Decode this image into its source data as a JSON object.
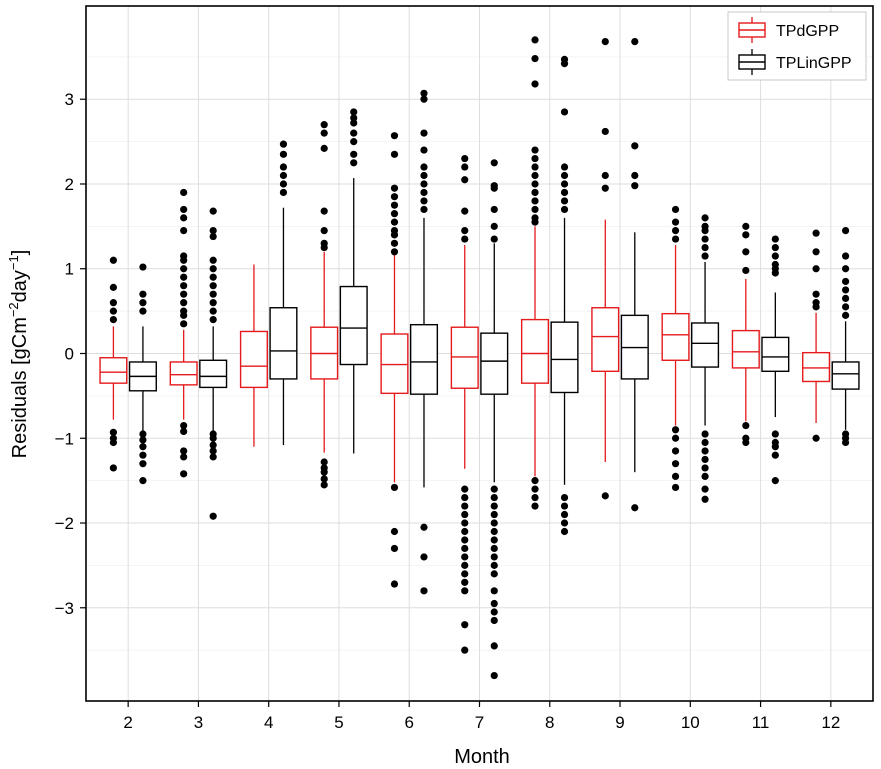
{
  "chart_data": {
    "type": "boxplot",
    "xlabel": "Month",
    "ylabel_prefix": "Residuals [gCm",
    "ylabel_sup1": "−2",
    "ylabel_mid": "day",
    "ylabel_sup2": "−1",
    "ylabel_suffix": "]",
    "ylim": [
      -4.1,
      4.1
    ],
    "yticks": [
      -3,
      -2,
      -1,
      0,
      1,
      2,
      3
    ],
    "ytick_labels": [
      "−3",
      "−2",
      "−1",
      "0",
      "1",
      "2",
      "3"
    ],
    "categories": [
      "2",
      "3",
      "4",
      "5",
      "6",
      "7",
      "8",
      "9",
      "10",
      "11",
      "12"
    ],
    "grid": true,
    "legend_position": "top-right",
    "series": [
      {
        "name": "TPdGPP",
        "color": "#e41a1c",
        "boxes": [
          {
            "q1": -0.35,
            "median": -0.22,
            "q3": -0.05,
            "lower": -0.78,
            "upper": 0.32,
            "outliers": [
              1.1,
              0.78,
              0.6,
              0.5,
              0.4,
              -0.93,
              -1.0,
              -1.05,
              -1.35
            ]
          },
          {
            "q1": -0.37,
            "median": -0.25,
            "q3": -0.1,
            "lower": -0.78,
            "upper": 0.28,
            "outliers": [
              1.9,
              1.7,
              1.6,
              1.45,
              1.15,
              1.1,
              1.0,
              0.9,
              0.8,
              0.7,
              0.6,
              0.5,
              0.45,
              0.35,
              -0.85,
              -0.92,
              -1.15,
              -1.22,
              -1.42
            ]
          },
          {
            "q1": -0.4,
            "median": -0.15,
            "q3": 0.26,
            "lower": -1.1,
            "upper": 1.05,
            "outliers": []
          },
          {
            "q1": -0.3,
            "median": 0.0,
            "q3": 0.31,
            "lower": -1.17,
            "upper": 1.2,
            "outliers": [
              2.7,
              2.6,
              2.42,
              1.68,
              1.45,
              1.3,
              1.25,
              -1.28,
              -1.35,
              -1.4,
              -1.48,
              -1.55
            ]
          },
          {
            "q1": -0.47,
            "median": -0.13,
            "q3": 0.23,
            "lower": -1.52,
            "upper": 1.17,
            "outliers": [
              2.57,
              2.35,
              1.95,
              1.85,
              1.75,
              1.65,
              1.55,
              1.45,
              1.4,
              1.3,
              1.2,
              -1.58,
              -2.1,
              -2.3,
              -2.72
            ]
          },
          {
            "q1": -0.41,
            "median": -0.04,
            "q3": 0.31,
            "lower": -1.36,
            "upper": 1.28,
            "outliers": [
              2.3,
              2.2,
              2.05,
              1.68,
              1.45,
              1.35,
              -1.6,
              -1.7,
              -1.8,
              -1.9,
              -2.0,
              -2.1,
              -2.2,
              -2.3,
              -2.4,
              -2.5,
              -2.6,
              -2.7,
              -2.8,
              -3.2,
              -3.5
            ]
          },
          {
            "q1": -0.35,
            "median": 0.0,
            "q3": 0.4,
            "lower": -1.45,
            "upper": 1.5,
            "outliers": [
              3.7,
              3.48,
              3.18,
              2.4,
              2.3,
              2.2,
              2.1,
              2.0,
              1.9,
              1.8,
              1.7,
              1.6,
              1.55,
              -1.5,
              -1.6,
              -1.7,
              -1.8
            ]
          },
          {
            "q1": -0.21,
            "median": 0.2,
            "q3": 0.54,
            "lower": -1.28,
            "upper": 1.58,
            "outliers": [
              3.68,
              2.62,
              2.1,
              1.95,
              -1.68
            ]
          },
          {
            "q1": -0.08,
            "median": 0.22,
            "q3": 0.47,
            "lower": -0.85,
            "upper": 1.28,
            "outliers": [
              1.7,
              1.55,
              1.45,
              1.35,
              -0.9,
              -1.0,
              -1.15,
              -1.3,
              -1.45,
              -1.58
            ]
          },
          {
            "q1": -0.17,
            "median": 0.02,
            "q3": 0.27,
            "lower": -0.8,
            "upper": 0.88,
            "outliers": [
              1.5,
              1.4,
              1.2,
              0.98,
              -0.85,
              -1.0,
              -1.05
            ]
          },
          {
            "q1": -0.33,
            "median": -0.17,
            "q3": 0.01,
            "lower": -0.82,
            "upper": 0.48,
            "outliers": [
              1.42,
              1.2,
              1.0,
              0.7,
              0.6,
              0.55,
              -1.0
            ]
          }
        ]
      },
      {
        "name": "TPLinGPP",
        "color": "#000000",
        "boxes": [
          {
            "q1": -0.44,
            "median": -0.27,
            "q3": -0.1,
            "lower": -0.93,
            "upper": 0.32,
            "outliers": [
              1.02,
              0.7,
              0.6,
              0.5,
              -0.95,
              -1.02,
              -1.1,
              -1.2,
              -1.3,
              -1.5
            ]
          },
          {
            "q1": -0.4,
            "median": -0.27,
            "q3": -0.08,
            "lower": -0.92,
            "upper": 0.32,
            "outliers": [
              1.68,
              1.45,
              1.38,
              1.1,
              1.0,
              0.9,
              0.8,
              0.7,
              0.6,
              0.5,
              0.4,
              -0.95,
              -1.0,
              -1.08,
              -1.15,
              -1.22,
              -1.92
            ]
          },
          {
            "q1": -0.3,
            "median": 0.03,
            "q3": 0.54,
            "lower": -1.08,
            "upper": 1.72,
            "outliers": [
              2.47,
              2.35,
              2.2,
              2.1,
              2.0,
              1.9
            ]
          },
          {
            "q1": -0.13,
            "median": 0.3,
            "q3": 0.79,
            "lower": -1.18,
            "upper": 2.07,
            "outliers": [
              2.85,
              2.78,
              2.72,
              2.6,
              2.5,
              2.35,
              2.25
            ]
          },
          {
            "q1": -0.48,
            "median": -0.1,
            "q3": 0.34,
            "lower": -1.58,
            "upper": 1.6,
            "outliers": [
              3.07,
              3.0,
              2.6,
              2.4,
              2.2,
              2.1,
              2.0,
              1.9,
              1.8,
              1.7,
              -2.05,
              -2.4,
              -2.8
            ]
          },
          {
            "q1": -0.48,
            "median": -0.09,
            "q3": 0.24,
            "lower": -1.52,
            "upper": 1.3,
            "outliers": [
              2.25,
              1.98,
              1.95,
              1.7,
              1.5,
              1.35,
              -1.6,
              -1.7,
              -1.8,
              -1.9,
              -2.0,
              -2.1,
              -2.2,
              -2.3,
              -2.4,
              -2.5,
              -2.6,
              -2.8,
              -2.95,
              -3.05,
              -3.15,
              -3.45,
              -3.8
            ]
          },
          {
            "q1": -0.46,
            "median": -0.07,
            "q3": 0.37,
            "lower": -1.55,
            "upper": 1.6,
            "outliers": [
              3.47,
              3.42,
              2.85,
              2.2,
              2.1,
              2.0,
              1.9,
              1.8,
              1.7,
              -1.7,
              -1.8,
              -1.9,
              -2.0,
              -2.1
            ]
          },
          {
            "q1": -0.3,
            "median": 0.07,
            "q3": 0.45,
            "lower": -1.4,
            "upper": 1.43,
            "outliers": [
              3.68,
              2.45,
              2.1,
              1.98,
              -1.82
            ]
          },
          {
            "q1": -0.16,
            "median": 0.12,
            "q3": 0.36,
            "lower": -0.85,
            "upper": 1.08,
            "outliers": [
              1.6,
              1.5,
              1.45,
              1.35,
              1.25,
              1.15,
              -0.95,
              -1.05,
              -1.15,
              -1.25,
              -1.35,
              -1.45,
              -1.6,
              -1.72
            ]
          },
          {
            "q1": -0.21,
            "median": -0.04,
            "q3": 0.19,
            "lower": -0.75,
            "upper": 0.72,
            "outliers": [
              1.35,
              1.25,
              1.15,
              1.05,
              1.0,
              0.95,
              -0.95,
              -1.05,
              -1.1,
              -1.2,
              -1.5
            ]
          },
          {
            "q1": -0.42,
            "median": -0.24,
            "q3": -0.1,
            "lower": -0.9,
            "upper": 0.38,
            "outliers": [
              1.45,
              1.15,
              1.0,
              0.85,
              0.75,
              0.65,
              0.55,
              0.45,
              -0.95,
              -1.0,
              -1.05
            ]
          }
        ]
      }
    ]
  }
}
